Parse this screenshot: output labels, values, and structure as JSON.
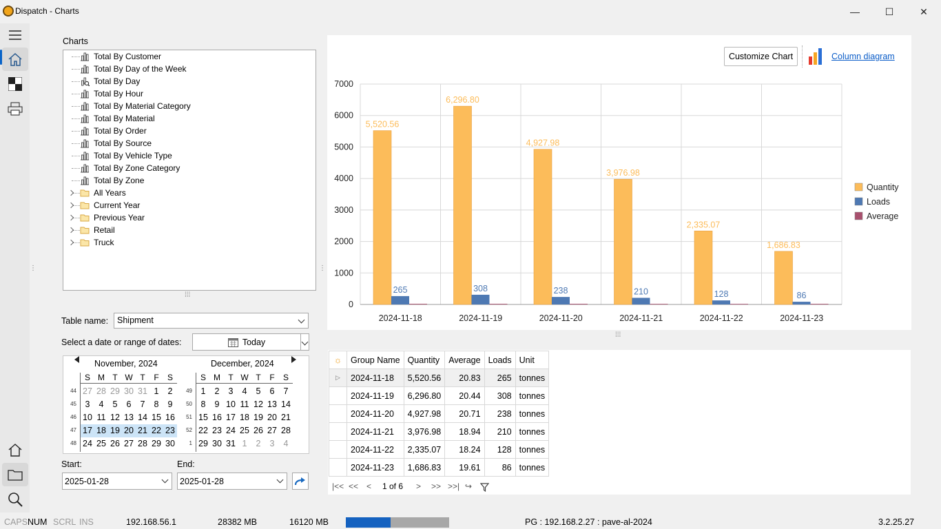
{
  "window": {
    "title": "Dispatch - Charts",
    "minimize": "—",
    "maximize": "☐",
    "close": "✕"
  },
  "charts_panel": {
    "label": "Charts",
    "items": [
      {
        "label": "Total By Customer",
        "kind": "chart"
      },
      {
        "label": "Total By Day of the Week",
        "kind": "chart"
      },
      {
        "label": "Total By Day",
        "kind": "chart-search"
      },
      {
        "label": "Total By Hour",
        "kind": "chart"
      },
      {
        "label": "Total By Material Category",
        "kind": "chart"
      },
      {
        "label": "Total By Material",
        "kind": "chart"
      },
      {
        "label": "Total By Order",
        "kind": "chart"
      },
      {
        "label": "Total By Source",
        "kind": "chart"
      },
      {
        "label": "Total By Vehicle Type",
        "kind": "chart"
      },
      {
        "label": "Total By Zone Category",
        "kind": "chart"
      },
      {
        "label": "Total By Zone",
        "kind": "chart"
      },
      {
        "label": "All Years",
        "kind": "folder"
      },
      {
        "label": "Current Year",
        "kind": "folder"
      },
      {
        "label": "Previous Year",
        "kind": "folder"
      },
      {
        "label": "Retail",
        "kind": "folder"
      },
      {
        "label": "Truck",
        "kind": "folder"
      }
    ]
  },
  "filters": {
    "table_name_label": "Table name:",
    "table_name_value": "Shipment",
    "date_range_label": "Select a date or range of dates:",
    "today_label": "Today",
    "start_label": "Start:",
    "start_value": "2025-01-28",
    "end_label": "End:",
    "end_value": "2025-01-28"
  },
  "calendar": {
    "dow": [
      "S",
      "M",
      "T",
      "W",
      "T",
      "F",
      "S"
    ],
    "months": [
      {
        "title": "November, 2024",
        "weeks": [
          "44",
          "45",
          "46",
          "47",
          "48"
        ],
        "days": [
          [
            "27",
            "28",
            "29",
            "30",
            "31",
            "1",
            "2"
          ],
          [
            "3",
            "4",
            "5",
            "6",
            "7",
            "8",
            "9"
          ],
          [
            "10",
            "11",
            "12",
            "13",
            "14",
            "15",
            "16"
          ],
          [
            "17",
            "18",
            "19",
            "20",
            "21",
            "22",
            "23"
          ],
          [
            "24",
            "25",
            "26",
            "27",
            "28",
            "29",
            "30"
          ]
        ],
        "other_row0": 5,
        "selected_row": 3
      },
      {
        "title": "December, 2024",
        "weeks": [
          "49",
          "50",
          "51",
          "52",
          "1"
        ],
        "days": [
          [
            "1",
            "2",
            "3",
            "4",
            "5",
            "6",
            "7"
          ],
          [
            "8",
            "9",
            "10",
            "11",
            "12",
            "13",
            "14"
          ],
          [
            "15",
            "16",
            "17",
            "18",
            "19",
            "20",
            "21"
          ],
          [
            "22",
            "23",
            "24",
            "25",
            "26",
            "27",
            "28"
          ],
          [
            "29",
            "30",
            "31",
            "1",
            "2",
            "3",
            "4"
          ]
        ],
        "other_row4_from": 3,
        "selected_row": -1
      }
    ]
  },
  "chart_toolbar": {
    "customize_label": "Customize Chart",
    "diagram_link": "Column diagram"
  },
  "chart_data": {
    "type": "bar",
    "categories": [
      "2024-11-18",
      "2024-11-19",
      "2024-11-20",
      "2024-11-21",
      "2024-11-22",
      "2024-11-23"
    ],
    "series": [
      {
        "name": "Quantity",
        "values": [
          5520.56,
          6296.8,
          4927.98,
          3976.98,
          2335.07,
          1686.83
        ],
        "labels": [
          "5,520.56",
          "6,296.80",
          "4,927.98",
          "3,976.98",
          "2,335.07",
          "1,686.83"
        ],
        "color": "#fcbc5a"
      },
      {
        "name": "Loads",
        "values": [
          265,
          308,
          238,
          210,
          128,
          86
        ],
        "labels": [
          "265",
          "308",
          "238",
          "210",
          "128",
          "86"
        ],
        "color": "#4e79b3"
      },
      {
        "name": "Average",
        "values": [
          20.83,
          20.44,
          20.71,
          18.94,
          18.24,
          19.61
        ],
        "labels": [],
        "color": "#a8506e"
      }
    ],
    "yticks": [
      "0",
      "1000",
      "2000",
      "3000",
      "4000",
      "5000",
      "6000",
      "7000"
    ],
    "ylim": [
      0,
      7000
    ],
    "legend": "right",
    "grid": true
  },
  "grid": {
    "columns": [
      "Group Name",
      "Quantity",
      "Average",
      "Loads",
      "Unit"
    ],
    "rows": [
      [
        "2024-11-18",
        "5,520.56",
        "20.83",
        "265",
        "tonnes"
      ],
      [
        "2024-11-19",
        "6,296.80",
        "20.44",
        "308",
        "tonnes"
      ],
      [
        "2024-11-20",
        "4,927.98",
        "20.71",
        "238",
        "tonnes"
      ],
      [
        "2024-11-21",
        "3,976.98",
        "18.94",
        "210",
        "tonnes"
      ],
      [
        "2024-11-22",
        "2,335.07",
        "18.24",
        "128",
        "tonnes"
      ],
      [
        "2024-11-23",
        "1,686.83",
        "19.61",
        "86",
        "tonnes"
      ]
    ]
  },
  "pager": {
    "page_text": "1 of 6"
  },
  "statusbar": {
    "caps": "CAPS",
    "num": "NUM",
    "scrl": "SCRL",
    "ins": "INS",
    "ip": "192.168.56.1",
    "mem1": "28382 MB",
    "mem2": "16120 MB",
    "progress": 0.43,
    "db": "PG : 192.168.2.27 : pave-al-2024",
    "version": "3.2.25.27"
  }
}
